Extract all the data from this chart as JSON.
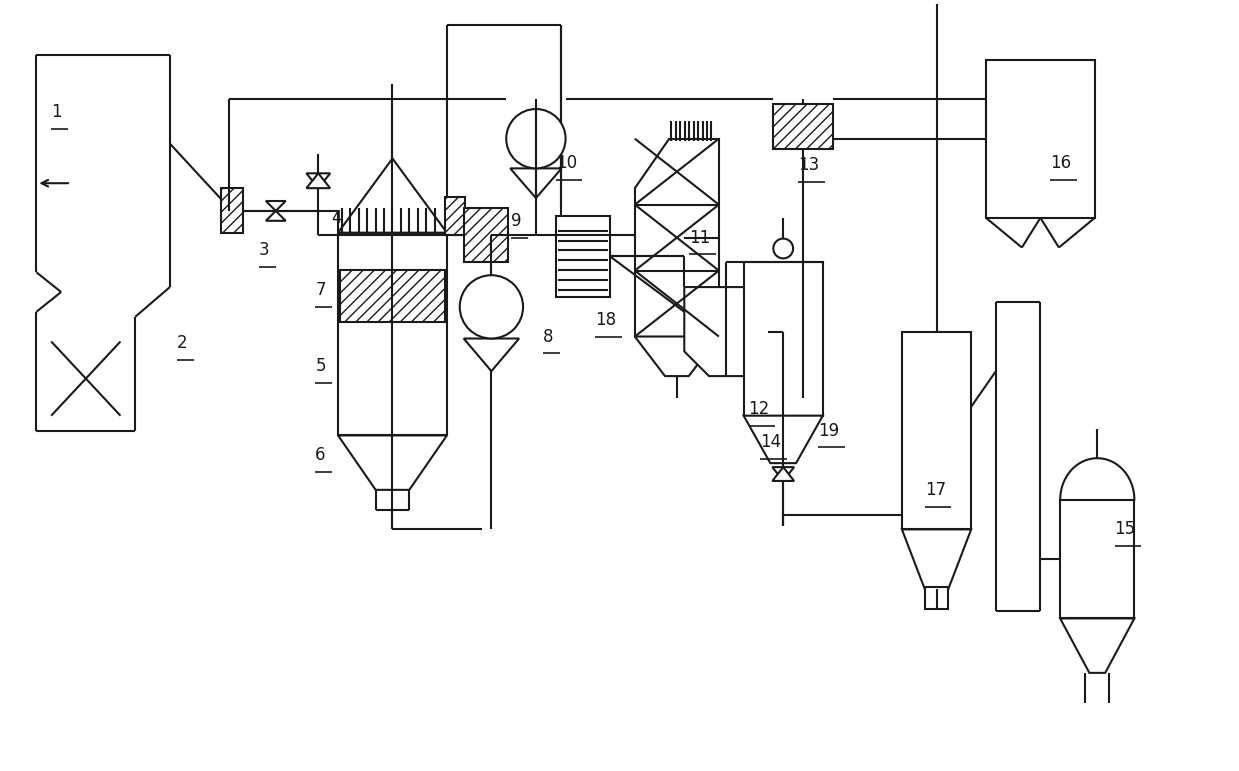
{
  "bg": "#ffffff",
  "lc": "#1a1a1a",
  "lw": 1.5,
  "fw": 12.39,
  "fh": 7.71
}
